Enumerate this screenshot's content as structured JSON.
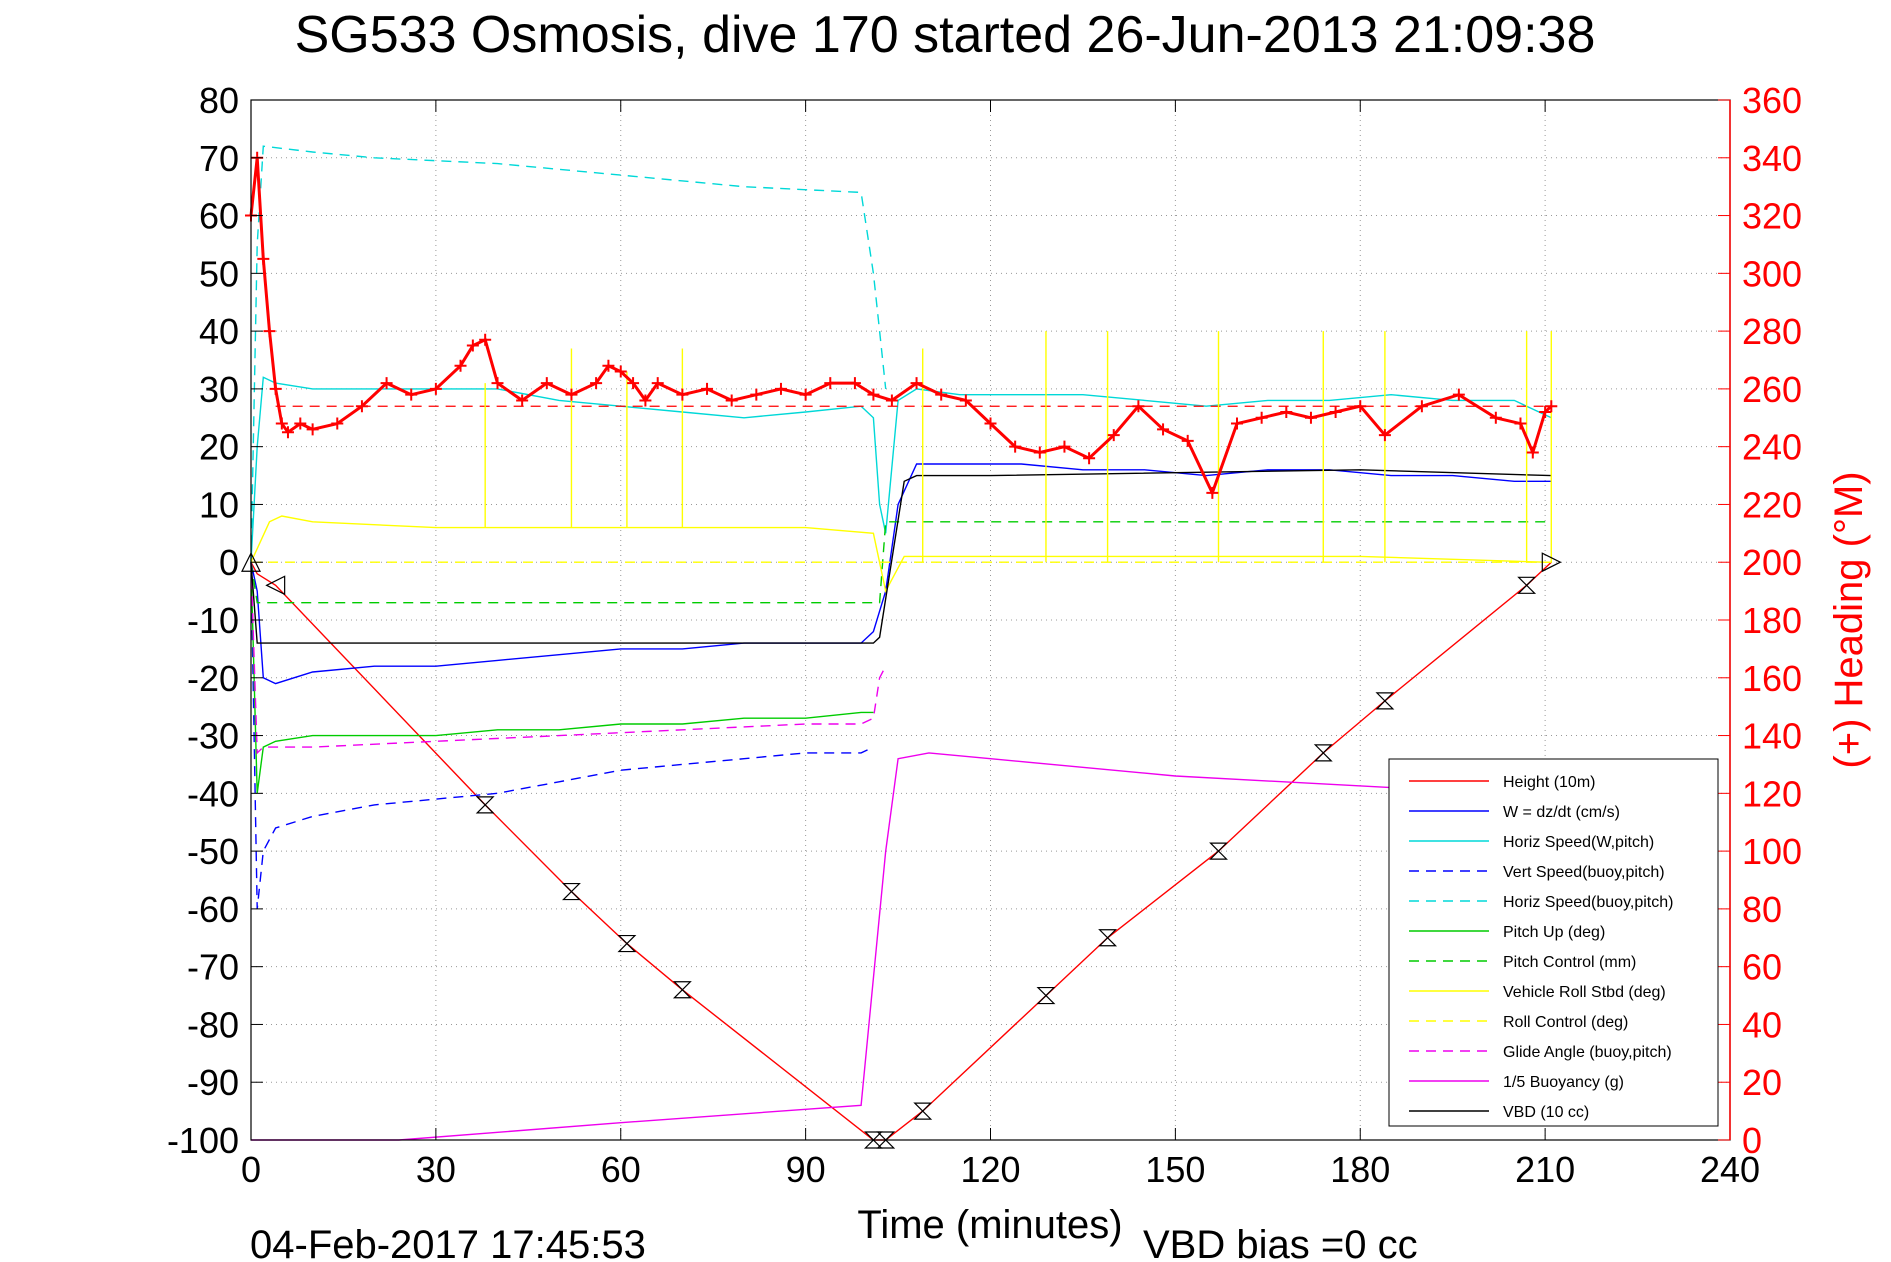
{
  "chart_data": {
    "type": "line",
    "title": "SG533 Osmosis, dive 170 started 26-Jun-2013 21:09:38",
    "xlabel": "Time (minutes)",
    "ylabel_right": "(+) Heading (°M)",
    "footer_left": "04-Feb-2017 17:45:53",
    "footer_right": "VBD bias =0 cc",
    "xlim": [
      0,
      240
    ],
    "ylim_left": [
      -100,
      80
    ],
    "ylim_right": [
      0,
      360
    ],
    "x_ticks": [
      0,
      30,
      60,
      90,
      120,
      150,
      180,
      210,
      240
    ],
    "x_tick_labels": [
      "0",
      "30",
      "60",
      "90",
      "120",
      "150",
      "180",
      "210",
      "240"
    ],
    "y_left_ticks": [
      80,
      70,
      60,
      50,
      40,
      30,
      20,
      10,
      0,
      -10,
      -20,
      -30,
      -40,
      -50,
      -60,
      -70,
      -80,
      -90,
      -100
    ],
    "y_left_tick_labels": [
      "80",
      "70",
      "60",
      "50",
      "40",
      "30",
      "20",
      "10",
      "0",
      "-10",
      "-20",
      "-30",
      "-40",
      "-50",
      "-60",
      "-70",
      "-80",
      "-90",
      "-100"
    ],
    "y_right_ticks": [
      360,
      340,
      320,
      300,
      280,
      260,
      240,
      220,
      200,
      180,
      160,
      140,
      120,
      100,
      80,
      60,
      40,
      20,
      0
    ],
    "y_right_tick_labels": [
      "360",
      "340",
      "320",
      "300",
      "280",
      "260",
      "240",
      "220",
      "200",
      "180",
      "160",
      "140",
      "120",
      "100",
      "80",
      "60",
      "40",
      "20",
      "0"
    ],
    "grid": true,
    "legend_position": "bottom-right",
    "series": [
      {
        "name": "Height (10m)",
        "color": "#ff0000",
        "dash": "solid",
        "x": [
          0,
          1,
          4,
          38,
          52,
          61,
          70,
          101,
          103,
          109,
          129,
          139,
          157,
          174,
          184,
          207,
          211
        ],
        "y": [
          0,
          -2,
          -4,
          -42,
          -57,
          -66,
          -74,
          -100,
          -100,
          -95,
          -75,
          -65,
          -50,
          -33,
          -24,
          -4,
          0
        ]
      },
      {
        "name": "W = dz/dt (cm/s)",
        "color": "#0000ff",
        "dash": "solid",
        "x": [
          0,
          1,
          2,
          4,
          10,
          20,
          30,
          40,
          50,
          60,
          70,
          80,
          90,
          99,
          101,
          103,
          105,
          108,
          115,
          125,
          135,
          145,
          155,
          165,
          175,
          185,
          195,
          205,
          211
        ],
        "y": [
          0,
          -5,
          -20,
          -21,
          -19,
          -18,
          -18,
          -17,
          -16,
          -15,
          -15,
          -14,
          -14,
          -14,
          -12,
          -5,
          10,
          17,
          17,
          17,
          16,
          16,
          15,
          16,
          16,
          15,
          15,
          14,
          14
        ]
      },
      {
        "name": "Horiz Speed(W,pitch)",
        "color": "#00d8d8",
        "dash": "solid",
        "x": [
          0,
          1,
          2,
          4,
          10,
          20,
          30,
          40,
          50,
          60,
          70,
          80,
          90,
          99,
          101,
          102,
          103,
          105,
          108,
          115,
          125,
          135,
          145,
          155,
          165,
          175,
          185,
          195,
          205,
          211
        ],
        "y": [
          0,
          20,
          32,
          31,
          30,
          30,
          30,
          30,
          28,
          27,
          26,
          25,
          26,
          27,
          25,
          10,
          5,
          28,
          30,
          29,
          29,
          29,
          28,
          27,
          28,
          28,
          29,
          28,
          28,
          25
        ]
      },
      {
        "name": "Vert Speed(buoy,pitch)",
        "color": "#0000ff",
        "dash": "dashed",
        "x": [
          0,
          1,
          2,
          4,
          10,
          20,
          30,
          40,
          50,
          60,
          70,
          80,
          90,
          99,
          101
        ],
        "y": [
          0,
          -60,
          -50,
          -46,
          -44,
          -42,
          -41,
          -40,
          -38,
          -36,
          -35,
          -34,
          -33,
          -33,
          -32
        ]
      },
      {
        "name": "Horiz Speed(buoy,pitch)",
        "color": "#00d8d8",
        "dash": "dashed",
        "x": [
          0,
          1,
          2,
          10,
          20,
          40,
          60,
          80,
          99,
          101,
          102,
          103
        ],
        "y": [
          0,
          55,
          72,
          71,
          70,
          69,
          67,
          65,
          64,
          50,
          40,
          30
        ]
      },
      {
        "name": "Pitch Up (deg)",
        "color": "#00cc00",
        "dash": "solid",
        "x": [
          0,
          1,
          2,
          4,
          10,
          20,
          30,
          40,
          50,
          60,
          70,
          80,
          90,
          99,
          101
        ],
        "y": [
          0,
          -40,
          -32,
          -31,
          -30,
          -30,
          -30,
          -29,
          -29,
          -28,
          -28,
          -27,
          -27,
          -26,
          -26
        ]
      },
      {
        "name": "Pitch Control (mm)",
        "color": "#00cc00",
        "dash": "dashed",
        "x": [
          0,
          1,
          2,
          101,
          102,
          103,
          211
        ],
        "y": [
          0,
          -7,
          -7,
          -7,
          -7,
          7,
          7
        ]
      },
      {
        "name": "Vehicle Roll Stbd (deg)",
        "color": "#ffff00",
        "dash": "solid",
        "x": [
          0,
          3,
          5,
          10,
          30,
          50,
          70,
          90,
          101,
          103,
          106,
          120,
          150,
          180,
          210,
          211
        ],
        "y": [
          0,
          7,
          8,
          7,
          6,
          6,
          6,
          6,
          5,
          -5,
          1,
          1,
          1,
          1,
          0,
          0
        ]
      },
      {
        "name": "Roll Control (deg)",
        "color": "#ffff00",
        "dash": "dashed",
        "x": [
          0,
          101,
          102,
          211
        ],
        "y": [
          0,
          0,
          0,
          0
        ]
      },
      {
        "name": "Glide Angle (buoy,pitch)",
        "color": "#ee00ee",
        "dash": "dashed",
        "x": [
          0,
          1,
          2,
          10,
          30,
          50,
          70,
          90,
          99,
          101,
          102,
          103
        ],
        "y": [
          0,
          -33,
          -32,
          -32,
          -31,
          -30,
          -29,
          -28,
          -28,
          -27,
          -20,
          -18
        ]
      },
      {
        "name": "1/5 Buoyancy (g)",
        "color": "#ee00ee",
        "dash": "solid",
        "x": [
          0,
          1,
          2,
          24,
          60,
          99,
          103,
          105,
          110,
          120,
          150,
          185,
          211
        ],
        "y": [
          -100,
          -100,
          -100,
          -100,
          -97,
          -94,
          -50,
          -34,
          -33,
          -34,
          -37,
          -39,
          -40
        ]
      },
      {
        "name": "VBD (10 cc)",
        "color": "#000000",
        "dash": "solid",
        "x": [
          0,
          1,
          2,
          101,
          102,
          106,
          108,
          120,
          180,
          211
        ],
        "y": [
          0,
          -14,
          -14,
          -14,
          -13,
          14,
          15,
          15,
          16,
          15
        ]
      }
    ],
    "reference_lines": [
      {
        "color": "#ff0000",
        "dash": "dashed",
        "y": 27,
        "x_from": 4,
        "x_to": 211
      }
    ],
    "heading_points": {
      "name": "Heading (+)",
      "color": "#ff0000",
      "marker": "+",
      "x": [
        0,
        1,
        2,
        3,
        4,
        5,
        6,
        8,
        10,
        14,
        18,
        22,
        26,
        30,
        34,
        36,
        38,
        40,
        44,
        48,
        52,
        56,
        58,
        60,
        62,
        64,
        66,
        70,
        74,
        78,
        82,
        86,
        90,
        94,
        98,
        101,
        104,
        108,
        112,
        116,
        120,
        124,
        128,
        132,
        136,
        140,
        144,
        148,
        152,
        156,
        160,
        164,
        168,
        172,
        176,
        180,
        184,
        190,
        196,
        202,
        206,
        208,
        210,
        211
      ],
      "y": [
        320,
        340,
        305,
        280,
        260,
        248,
        245,
        248,
        246,
        248,
        254,
        262,
        258,
        260,
        268,
        275,
        277,
        262,
        256,
        262,
        258,
        262,
        268,
        266,
        262,
        256,
        262,
        258,
        260,
        256,
        258,
        260,
        258,
        262,
        262,
        258,
        256,
        262,
        258,
        256,
        248,
        240,
        238,
        240,
        236,
        244,
        254,
        246,
        242,
        224,
        248,
        250,
        252,
        250,
        252,
        254,
        244,
        254,
        258,
        250,
        248,
        238,
        252,
        254
      ]
    },
    "triangle_markers": [
      {
        "shape": "triangle-up",
        "x": 0,
        "y": 0
      },
      {
        "shape": "triangle-left",
        "x": 4,
        "y": -4
      },
      {
        "shape": "triangle-right",
        "x": 211,
        "y": 0
      }
    ],
    "hourglass_markers": [
      {
        "x": 38,
        "y": -42
      },
      {
        "x": 52,
        "y": -57
      },
      {
        "x": 61,
        "y": -66
      },
      {
        "x": 70,
        "y": -74
      },
      {
        "x": 101,
        "y": -100
      },
      {
        "x": 103,
        "y": -100
      },
      {
        "x": 109,
        "y": -95
      },
      {
        "x": 129,
        "y": -75
      },
      {
        "x": 139,
        "y": -65
      },
      {
        "x": 157,
        "y": -50
      },
      {
        "x": 174,
        "y": -33
      },
      {
        "x": 184,
        "y": -24
      },
      {
        "x": 207,
        "y": -4
      }
    ],
    "yellow_spikes": [
      {
        "x": 38,
        "y_from": 6,
        "y_to": 31
      },
      {
        "x": 52,
        "y_from": 6,
        "y_to": 37
      },
      {
        "x": 61,
        "y_from": 6,
        "y_to": 33
      },
      {
        "x": 70,
        "y_from": 6,
        "y_to": 37
      },
      {
        "x": 109,
        "y_from": 0,
        "y_to": 37
      },
      {
        "x": 129,
        "y_from": 0,
        "y_to": 40
      },
      {
        "x": 139,
        "y_from": 0,
        "y_to": 40
      },
      {
        "x": 157,
        "y_from": 0,
        "y_to": 40
      },
      {
        "x": 174,
        "y_from": 0,
        "y_to": 40
      },
      {
        "x": 184,
        "y_from": 0,
        "y_to": 40
      },
      {
        "x": 207,
        "y_from": 0,
        "y_to": 40
      },
      {
        "x": 211,
        "y_from": 0,
        "y_to": 40
      }
    ]
  }
}
